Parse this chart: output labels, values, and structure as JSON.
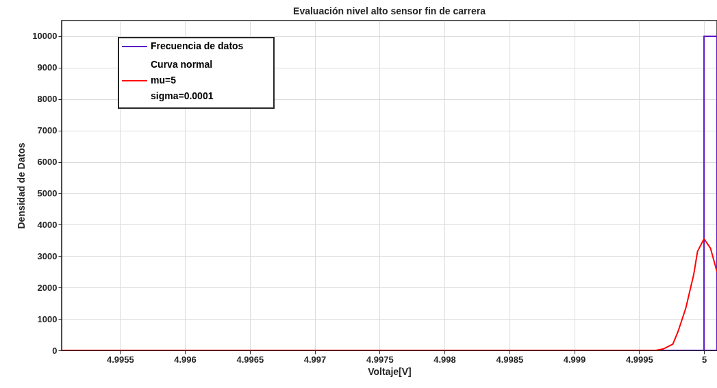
{
  "chart_data": {
    "type": "histogram",
    "title": "Evaluación nivel alto sensor fin de carrera",
    "xlabel": "Voltaje[V]",
    "ylabel": "Densidad de Datos",
    "series": [
      {
        "name": "Frecuencia de datos",
        "color": "#5a14c8",
        "bins": [
          4.9996,
          5,
          5.0001
        ],
        "values": [
          0,
          10000
        ]
      },
      {
        "type": "line",
        "name": "Curva normal\nmu=5\nsigma=0.0001",
        "color": "#ff0000",
        "x": [
          4.99505,
          4.99963,
          4.99969,
          4.99976,
          4.9998,
          4.99986,
          4.99992,
          4.99995,
          5,
          5.00005,
          5.0001
        ],
        "values": [
          0,
          0,
          50,
          200,
          600,
          1350,
          2400,
          3150,
          3550,
          3250,
          2500
        ]
      }
    ],
    "xlim": [
      4.99505,
      5.0001
    ],
    "xticks": [
      4.9955,
      4.996,
      4.9965,
      4.997,
      4.9975,
      4.998,
      4.9985,
      4.999,
      4.9995,
      5
    ],
    "ylim": [
      0,
      10500
    ],
    "yticks": [
      0,
      1000,
      2000,
      3000,
      4000,
      5000,
      6000,
      7000,
      8000,
      9000,
      10000
    ],
    "grid": true,
    "legend": "top left"
  }
}
